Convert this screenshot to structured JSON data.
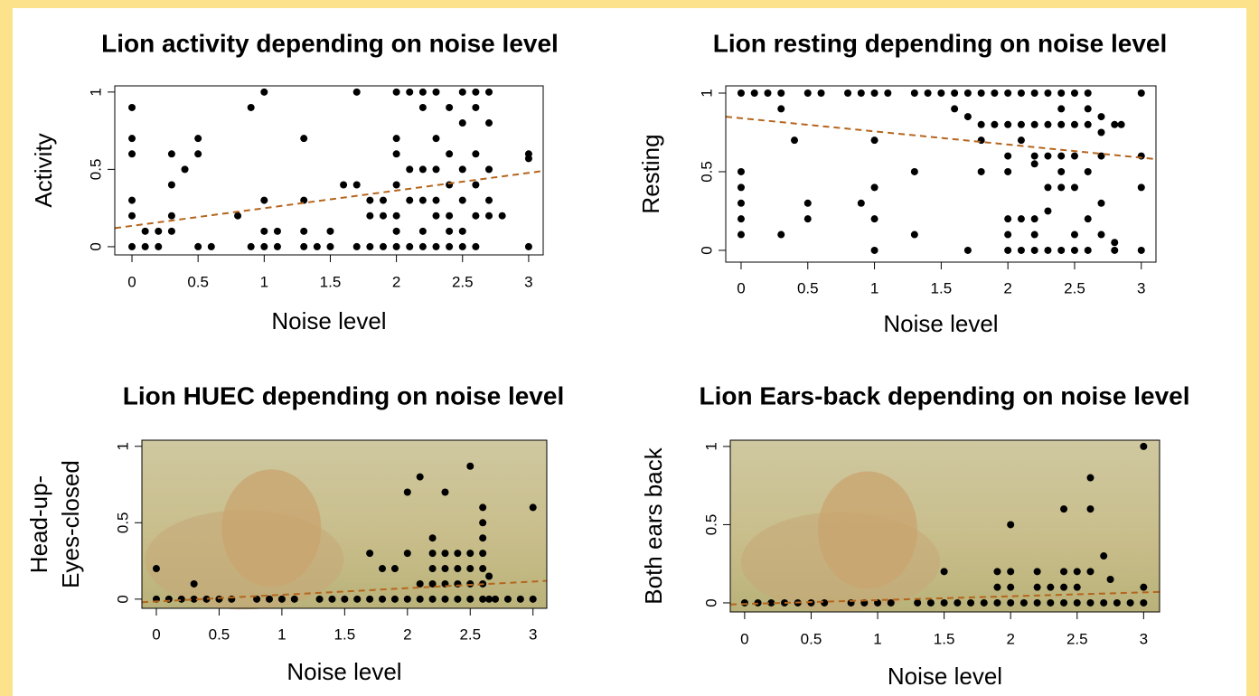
{
  "chart_data": [
    {
      "type": "scatter",
      "title": "Lion activity depending on noise level",
      "xlabel": "Noise level",
      "ylabel": [
        "Activity"
      ],
      "color": "#000000",
      "x": [
        0,
        0,
        0,
        0,
        0,
        0,
        0.1,
        0.1,
        0.2,
        0.2,
        0.3,
        0.3,
        0.3,
        0.3,
        0.4,
        0.5,
        0.5,
        0.5,
        0.6,
        0.8,
        0.9,
        0.9,
        1,
        1,
        1,
        1,
        1.1,
        1.1,
        1.3,
        1.3,
        1.3,
        1.3,
        1.4,
        1.5,
        1.5,
        1.6,
        1.7,
        1.7,
        1.7,
        1.8,
        1.8,
        1.8,
        1.9,
        1.9,
        1.9,
        2,
        2,
        2,
        2,
        2,
        2,
        2,
        2.1,
        2.1,
        2.1,
        2.1,
        2.2,
        2.2,
        2.2,
        2.2,
        2.2,
        2.2,
        2.3,
        2.3,
        2.3,
        2.3,
        2.3,
        2.3,
        2.4,
        2.4,
        2.4,
        2.4,
        2.4,
        2.4,
        2.5,
        2.5,
        2.5,
        2.5,
        2.5,
        2.5,
        2.6,
        2.6,
        2.6,
        2.6,
        2.6,
        2.6,
        2.7,
        2.7,
        2.7,
        2.7,
        2.7,
        2.8,
        3,
        3,
        3
      ],
      "values": [
        0.9,
        0.7,
        0.6,
        0.3,
        0.2,
        0,
        0.1,
        0,
        0.1,
        0,
        0.6,
        0.4,
        0.2,
        0.1,
        0.5,
        0.7,
        0.6,
        0,
        0,
        0.2,
        0.9,
        0,
        1,
        0.3,
        0.1,
        0,
        0.1,
        0,
        0.7,
        0.3,
        0.1,
        0,
        0,
        0.1,
        0,
        0.4,
        1,
        0.4,
        0,
        0.3,
        0.2,
        0,
        0.3,
        0.2,
        0,
        1,
        0.7,
        0.6,
        0.4,
        0.2,
        0.1,
        0,
        1,
        0.5,
        0.3,
        0,
        1,
        0.9,
        0.5,
        0.3,
        0.1,
        0,
        1,
        0.7,
        0.5,
        0.3,
        0.2,
        0,
        0.9,
        0.6,
        0.4,
        0.2,
        0.1,
        0,
        1,
        0.8,
        0.5,
        0.3,
        0.1,
        0,
        1,
        0.9,
        0.6,
        0.4,
        0.2,
        0,
        1,
        0.8,
        0.5,
        0.3,
        0.2,
        0.2,
        0.6,
        0.57,
        0
      ],
      "trend": {
        "x": [
          -0.13,
          3.11
        ],
        "values": [
          0.12,
          0.49
        ],
        "color": "#b5651d"
      },
      "xlim": [
        -0.13,
        3.11
      ],
      "ylim": [
        -0.053,
        1.04
      ],
      "xticks": [
        0,
        0.5,
        1,
        1.5,
        2,
        2.5,
        3
      ],
      "yticks": [
        0,
        0.5,
        1
      ]
    },
    {
      "type": "scatter",
      "title": "Lion resting depending on noise level",
      "xlabel": "Noise level",
      "ylabel": [
        "Resting"
      ],
      "color": "#000000",
      "x": [
        0,
        0,
        0,
        0,
        0,
        0,
        0.1,
        0.2,
        0.3,
        0.3,
        0.3,
        0.4,
        0.5,
        0.5,
        0.5,
        0.6,
        0.8,
        0.9,
        0.9,
        1,
        1,
        1,
        1,
        1,
        1.1,
        1.3,
        1.3,
        1.3,
        1.4,
        1.5,
        1.6,
        1.6,
        1.7,
        1.7,
        1.7,
        1.8,
        1.8,
        1.8,
        1.8,
        1.9,
        1.9,
        2,
        2,
        2,
        2,
        2,
        2,
        2,
        2.1,
        2.1,
        2.1,
        2.1,
        2.1,
        2.2,
        2.2,
        2.2,
        2.2,
        2.2,
        2.2,
        2.2,
        2.3,
        2.3,
        2.3,
        2.3,
        2.3,
        2.3,
        2.4,
        2.4,
        2.4,
        2.4,
        2.4,
        2.4,
        2.4,
        2.5,
        2.5,
        2.5,
        2.5,
        2.5,
        2.5,
        2.6,
        2.6,
        2.6,
        2.6,
        2.6,
        2.6,
        2.7,
        2.7,
        2.7,
        2.7,
        2.7,
        2.8,
        2.8,
        2.8,
        2.85,
        3,
        3,
        3,
        3
      ],
      "values": [
        1,
        0.5,
        0.4,
        0.3,
        0.2,
        0.1,
        1,
        1,
        1,
        0.9,
        0.1,
        0.7,
        1,
        0.3,
        0.2,
        1,
        1,
        1,
        0.3,
        1,
        0.7,
        0.4,
        0.2,
        0,
        1,
        1,
        0.5,
        0.1,
        1,
        1,
        1,
        0.9,
        1,
        0.85,
        0,
        1,
        0.8,
        0.7,
        0.5,
        1,
        0.8,
        1,
        0.8,
        0.6,
        0.5,
        0.2,
        0.1,
        0,
        1,
        0.8,
        0.7,
        0.2,
        0,
        1,
        0.8,
        0.6,
        0.55,
        0.2,
        0.1,
        0,
        1,
        0.8,
        0.6,
        0.4,
        0.25,
        0,
        1,
        0.9,
        0.8,
        0.6,
        0.5,
        0.4,
        0,
        1,
        0.8,
        0.6,
        0.4,
        0.1,
        0,
        1,
        0.9,
        0.8,
        0.5,
        0.2,
        0,
        0.85,
        0.75,
        0.6,
        0.3,
        0.1,
        0.8,
        0.05,
        0,
        0.8,
        1,
        0.6,
        0.4,
        0
      ],
      "trend": {
        "x": [
          -0.115,
          3.11
        ],
        "values": [
          0.85,
          0.58
        ],
        "color": "#b5651d"
      },
      "xlim": [
        -0.115,
        3.11
      ],
      "ylim": [
        -0.075,
        1.046
      ],
      "xticks": [
        0,
        0.5,
        1,
        1.5,
        2,
        2.5,
        3
      ],
      "yticks": [
        0,
        0.5,
        1
      ]
    },
    {
      "type": "scatter",
      "title": "Lion HUEC depending on noise level",
      "xlabel": "Noise level",
      "ylabel": [
        "Head-up-",
        "Eyes-closed"
      ],
      "color": "#000000",
      "x": [
        0,
        0,
        0.1,
        0.2,
        0.3,
        0.3,
        0.4,
        0.5,
        0.6,
        0.8,
        0.9,
        1,
        1.1,
        1.3,
        1.4,
        1.5,
        1.6,
        1.7,
        1.7,
        1.8,
        1.8,
        1.9,
        1.9,
        2,
        2,
        2,
        2.1,
        2.1,
        2.1,
        2.2,
        2.2,
        2.2,
        2.2,
        2.2,
        2.3,
        2.3,
        2.3,
        2.3,
        2.3,
        2.4,
        2.4,
        2.4,
        2.4,
        2.5,
        2.5,
        2.5,
        2.5,
        2.5,
        2.6,
        2.6,
        2.6,
        2.6,
        2.6,
        2.6,
        2.6,
        2.65,
        2.65,
        2.7,
        2.8,
        2.9,
        3,
        3
      ],
      "values": [
        0.2,
        0,
        0,
        0,
        0.1,
        0,
        0,
        0,
        0,
        0,
        0,
        0,
        0,
        0,
        0,
        0,
        0,
        0.3,
        0,
        0.2,
        0,
        0.2,
        0,
        0.7,
        0.3,
        0,
        0.8,
        0.1,
        0,
        0.4,
        0.3,
        0.2,
        0.1,
        0,
        0.7,
        0.3,
        0.2,
        0.1,
        0,
        0.3,
        0.2,
        0.1,
        0,
        0.87,
        0.3,
        0.2,
        0.1,
        0,
        0.6,
        0.5,
        0.4,
        0.3,
        0.2,
        0.1,
        0,
        0.15,
        0,
        0,
        0,
        0,
        0.6,
        0
      ],
      "trend": {
        "x": [
          -0.115,
          3.11
        ],
        "values": [
          -0.02,
          0.12
        ],
        "color": "#b5651d"
      },
      "xlim": [
        -0.115,
        3.11
      ],
      "ylim": [
        -0.06,
        1.04
      ],
      "xticks": [
        0,
        0.5,
        1,
        1.5,
        2,
        2.5,
        3
      ],
      "yticks": [
        0,
        0.5,
        1
      ]
    },
    {
      "type": "scatter",
      "title": "Lion Ears-back depending on noise level",
      "xlabel": "Noise level",
      "ylabel": [
        "Both ears back"
      ],
      "color": "#000000",
      "x": [
        0,
        0.1,
        0.2,
        0.3,
        0.4,
        0.5,
        0.6,
        0.8,
        0.9,
        1,
        1.1,
        1.3,
        1.4,
        1.5,
        1.5,
        1.6,
        1.7,
        1.8,
        1.9,
        1.9,
        1.9,
        2,
        2,
        2,
        2,
        2.1,
        2.2,
        2.2,
        2.2,
        2.3,
        2.3,
        2.4,
        2.4,
        2.4,
        2.4,
        2.5,
        2.5,
        2.5,
        2.6,
        2.6,
        2.6,
        2.6,
        2.7,
        2.7,
        2.75,
        2.8,
        2.9,
        3,
        3,
        3
      ],
      "values": [
        0,
        0,
        0,
        0,
        0,
        0,
        0,
        0,
        0,
        0,
        0,
        0,
        0,
        0.2,
        0,
        0,
        0,
        0,
        0.2,
        0.1,
        0,
        0.5,
        0.2,
        0.1,
        0,
        0,
        0.2,
        0.1,
        0,
        0.1,
        0,
        0.6,
        0.2,
        0.1,
        0,
        0.2,
        0.1,
        0,
        0.8,
        0.6,
        0.2,
        0,
        0.3,
        0,
        0.15,
        0,
        0,
        1,
        0.1,
        0
      ],
      "trend": {
        "x": [
          -0.108,
          3.12
        ],
        "values": [
          -0.01,
          0.07
        ],
        "color": "#b5651d"
      },
      "xlim": [
        -0.108,
        3.12
      ],
      "ylim": [
        -0.058,
        1.04
      ],
      "xticks": [
        0,
        0.5,
        1,
        1.5,
        2,
        2.5,
        3
      ],
      "yticks": [
        0,
        0.5,
        1
      ]
    }
  ]
}
